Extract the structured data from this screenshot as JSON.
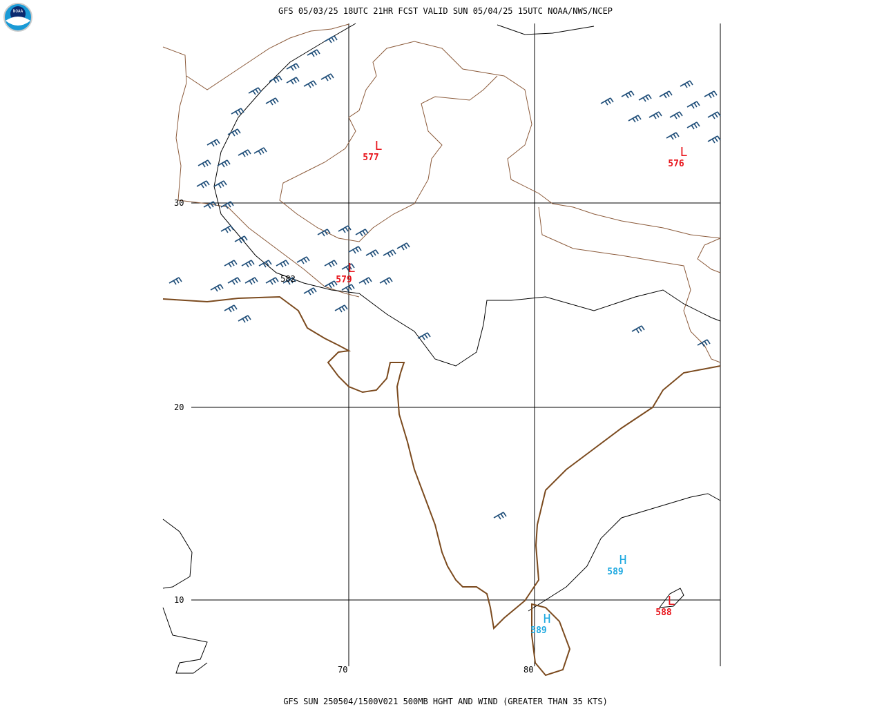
{
  "header": {
    "title": "GFS 05/03/25 18UTC 21HR FCST VALID SUN 05/04/25 15UTC NOAA/NWS/NCEP"
  },
  "footer": {
    "caption": "GFS SUN 250504/1500V021 500MB HGHT AND WIND (GREATER THAN 35 KTS)"
  },
  "logo": {
    "text": "NOAA"
  },
  "grid": {
    "lat_labels": [
      "30",
      "20",
      "10"
    ],
    "lon_labels": [
      "70",
      "80"
    ]
  },
  "centers": [
    {
      "symbol": "L",
      "value": "577"
    },
    {
      "symbol": "L",
      "value": "576"
    },
    {
      "symbol": "L",
      "value": "579"
    },
    {
      "symbol": "H",
      "value": "589"
    },
    {
      "symbol": "H",
      "value": "589"
    },
    {
      "symbol": "L",
      "value": "588"
    }
  ],
  "contour_labels": [
    "582"
  ]
}
